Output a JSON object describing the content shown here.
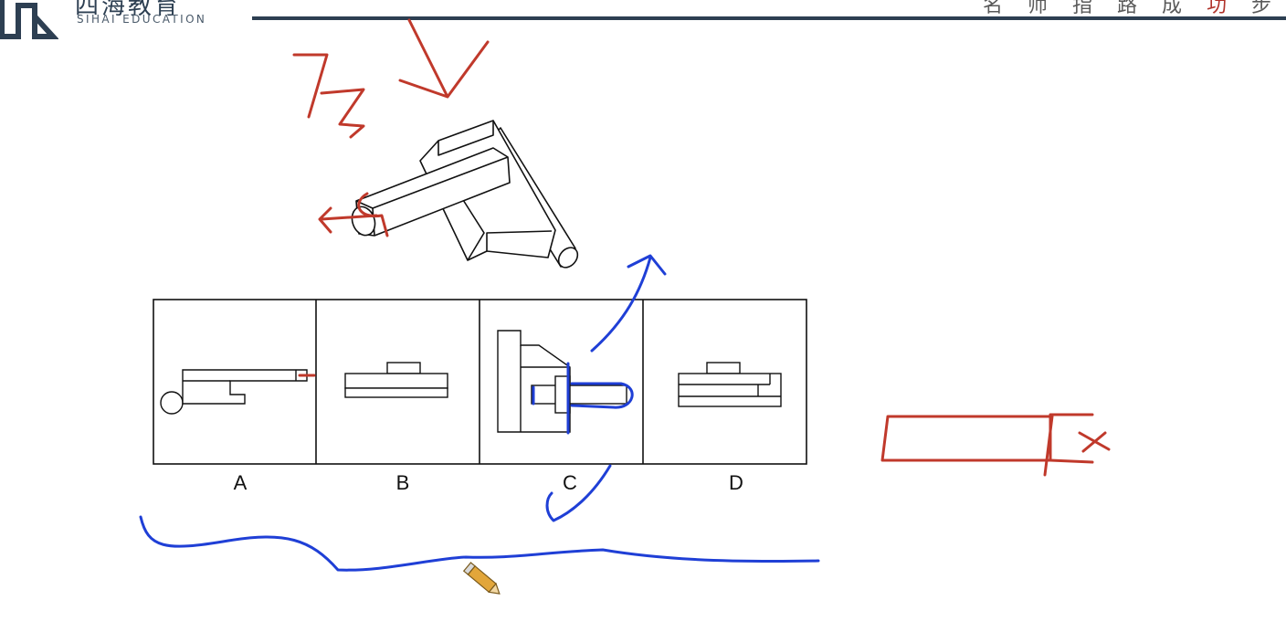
{
  "header": {
    "logo_cn": "四海教育",
    "logo_en": "SIHAI EDUCATION",
    "slogan_left": "名 师 指 路 成 ",
    "slogan_accent": "功",
    "slogan_right": " 步"
  },
  "question": {
    "options": [
      {
        "label": "A"
      },
      {
        "label": "B"
      },
      {
        "label": "C"
      },
      {
        "label": "D"
      }
    ]
  },
  "annotations": {
    "colors": {
      "red": "#c0392b",
      "blue": "#1f3fd6"
    },
    "red_note": "7",
    "red_mark_x": "x"
  }
}
